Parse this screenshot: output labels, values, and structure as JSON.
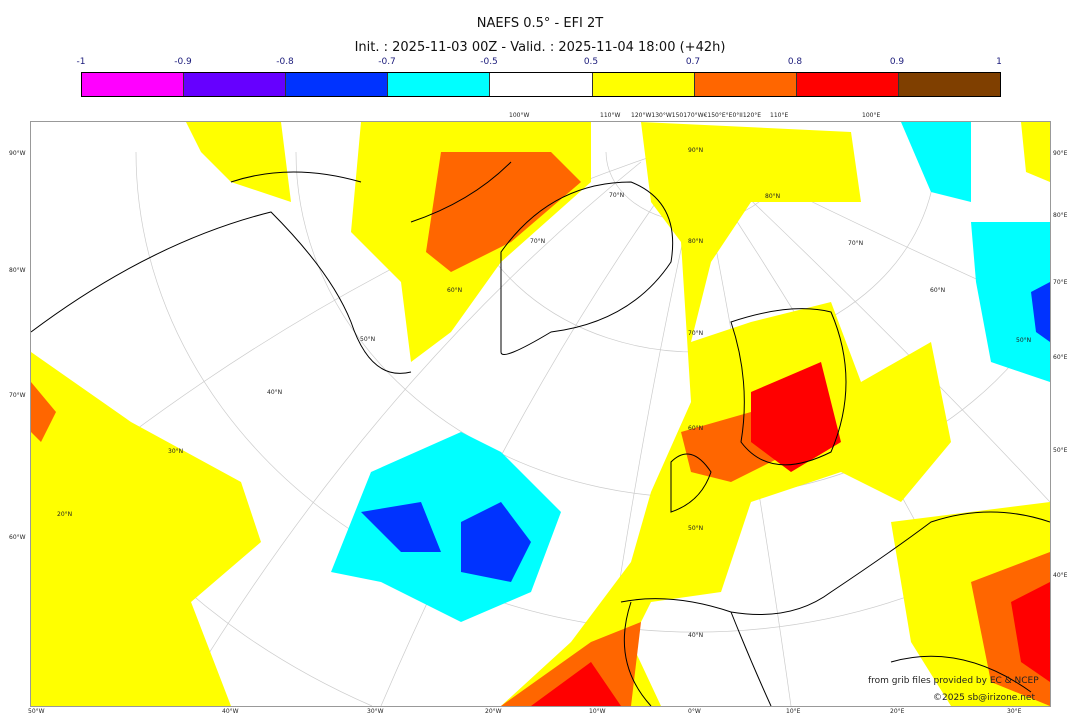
{
  "title": "NAEFS 0.5° - EFI 2T",
  "subtitle": "Init. : 2025-11-03 00Z - Valid. : 2025-11-04 18:00 (+42h)",
  "colorbar": {
    "ticks": [
      "-1",
      "-0.9",
      "-0.8",
      "-0.7",
      "-0.5",
      "0.5",
      "0.7",
      "0.8",
      "0.9",
      "1"
    ],
    "colors": [
      "#ff00ff",
      "#6600ff",
      "#0033ff",
      "#00ffff",
      "#ffffff",
      "#ffff00",
      "#ff6600",
      "#ff0000",
      "#7f3f00"
    ]
  },
  "axes": {
    "left": [
      "90°W",
      "80°W",
      "70°W",
      "60°W"
    ],
    "right": [
      "90°E",
      "80°E",
      "70°E",
      "60°E",
      "50°E",
      "40°E"
    ],
    "bottom": [
      "50°W",
      "40°W",
      "30°W",
      "20°W",
      "10°W",
      "0°W",
      "10°E",
      "20°E",
      "30°E"
    ],
    "top": [
      "100°W",
      "110°W",
      "120°W130°W150170°W€150°E°E0°II120°E",
      "110°E",
      "100°E"
    ],
    "latitudes": [
      "90°N",
      "80°N",
      "70°N",
      "60°N",
      "50°N",
      "40°N",
      "30°N",
      "20°N"
    ]
  },
  "credits": {
    "line1": "from grib files provided by EC & NCEP",
    "line2": "©2025 sb@irizone.net"
  }
}
